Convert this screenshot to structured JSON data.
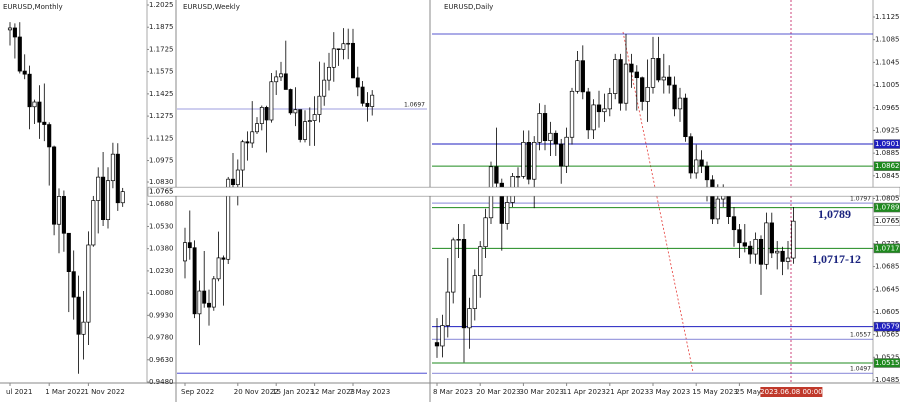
{
  "chart_data": [
    {
      "type": "candlestick",
      "title": "EURUSD,Monthly",
      "categories": [
        "ul 2021",
        null,
        null,
        null,
        null,
        null,
        null,
        null,
        "1 Mar 2022",
        null,
        null,
        null,
        null,
        null,
        null,
        null,
        "1 Nov 2022",
        null,
        null,
        null,
        null,
        null,
        null,
        null
      ],
      "values": [
        [
          1.1857,
          1.1909,
          1.1752,
          1.187
        ],
        [
          1.187,
          1.1901,
          1.1664,
          1.1809
        ],
        [
          1.1809,
          1.1909,
          1.1563,
          1.1579
        ],
        [
          1.1579,
          1.1692,
          1.1524,
          1.1558
        ],
        [
          1.1558,
          1.1616,
          1.1186,
          1.1338
        ],
        [
          1.1338,
          1.1386,
          1.1222,
          1.137
        ],
        [
          1.137,
          1.1483,
          1.1121,
          1.1234
        ],
        [
          1.1234,
          1.1495,
          1.1106,
          1.1218
        ],
        [
          1.1218,
          1.1233,
          1.0806,
          1.1067
        ],
        [
          1.1067,
          1.1076,
          1.0471,
          1.0545
        ],
        [
          1.0545,
          1.0787,
          1.0349,
          1.0733
        ],
        [
          1.0733,
          1.0773,
          1.0359,
          1.0484
        ],
        [
          1.0484,
          1.0486,
          0.9952,
          1.0225
        ],
        [
          1.0225,
          1.0368,
          0.9901,
          1.0053
        ],
        [
          1.0053,
          1.0198,
          0.9536,
          0.9802
        ],
        [
          0.9802,
          1.0094,
          0.9632,
          0.9884
        ],
        [
          0.9884,
          1.0497,
          0.973,
          1.0405
        ],
        [
          1.0405,
          1.0736,
          1.0393,
          1.0705
        ],
        [
          1.0705,
          1.0929,
          1.0483,
          1.0863
        ],
        [
          1.0863,
          1.1033,
          1.0533,
          1.0576
        ],
        [
          1.0576,
          1.093,
          1.0516,
          1.0839
        ],
        [
          1.0839,
          1.1095,
          1.0788,
          1.1018
        ],
        [
          1.1018,
          1.1092,
          1.0635,
          1.069
        ],
        [
          1.069,
          1.079,
          1.0662,
          1.0765
        ]
      ],
      "up_color": "#ffffff",
      "down_color": "#000000",
      "edge_color": "#000000",
      "ylim": [
        0.948,
        1.2025
      ],
      "yticks": [
        1.2025,
        1.1875,
        1.1725,
        1.1575,
        1.1425,
        1.1275,
        1.1125,
        1.0975,
        {
          "value": 1.083,
          "label": "1.0830"
        },
        {
          "value": 1.068,
          "label": "1.0680"
        },
        {
          "value": 1.053,
          "label": "1.0530"
        },
        {
          "value": 1.038,
          "label": "1.0380"
        },
        {
          "value": 1.023,
          "label": "1.0230"
        },
        {
          "value": 1.008,
          "label": "1.0080"
        },
        {
          "value": 0.993,
          "label": "0.9930"
        },
        {
          "value": 0.978,
          "label": "0.9780"
        },
        {
          "value": 0.963,
          "label": "0.9630"
        },
        {
          "value": 0.948,
          "label": "0.9480"
        }
      ],
      "levels": [
        {
          "value": 1.0765,
          "color": "#ffffff",
          "line": false
        }
      ]
    },
    {
      "type": "candlestick",
      "title": "EURUSD,Weekly",
      "categories": [
        "Sep 2022",
        null,
        null,
        null,
        null,
        null,
        null,
        null,
        null,
        null,
        null,
        "20 Nov 2022",
        null,
        null,
        null,
        null,
        null,
        null,
        null,
        "15 Jan 2023",
        null,
        null,
        null,
        null,
        null,
        null,
        null,
        "12 Mar 2023",
        null,
        null,
        null,
        null,
        null,
        null,
        null,
        "7 May 2023",
        null,
        null,
        null,
        null
      ],
      "values": [
        [
          0.995,
          1.0113,
          0.9864,
          1.004
        ],
        [
          1.004,
          1.0198,
          0.9956,
          1.0015
        ],
        [
          1.0015,
          1.0051,
          0.9669,
          0.969
        ],
        [
          0.969,
          0.9854,
          0.9536,
          0.9802
        ],
        [
          0.9802,
          0.9999,
          0.972,
          0.9742
        ],
        [
          0.9742,
          0.9809,
          0.9632,
          0.9723
        ],
        [
          0.9723,
          0.9876,
          0.9705,
          0.9862
        ],
        [
          0.9862,
          1.0094,
          0.985,
          0.9965
        ],
        [
          0.9965,
          0.9977,
          0.973,
          0.9958
        ],
        [
          0.9958,
          1.0363,
          0.9935,
          1.0352
        ],
        [
          1.0352,
          1.0481,
          1.0271,
          1.0325
        ],
        [
          1.0325,
          1.0449,
          1.0223,
          1.0397
        ],
        [
          1.0397,
          1.0545,
          1.029,
          1.0536
        ],
        [
          1.0536,
          1.0587,
          1.0443,
          1.053
        ],
        [
          1.053,
          1.0736,
          1.0506,
          1.0585
        ],
        [
          1.0585,
          1.0657,
          1.0574,
          1.0625
        ],
        [
          1.0625,
          1.0714,
          1.0592,
          1.0705
        ],
        [
          1.0705,
          1.0713,
          1.0483,
          1.0643
        ],
        [
          1.0643,
          1.0874,
          1.063,
          1.0831
        ],
        [
          1.0831,
          1.0887,
          1.0766,
          1.0855
        ],
        [
          1.0855,
          1.0929,
          1.0835,
          1.087
        ],
        [
          1.087,
          1.1033,
          1.0793,
          1.0793
        ],
        [
          1.0793,
          1.0797,
          1.0669,
          1.0678
        ],
        [
          1.0678,
          1.0804,
          1.0613,
          1.0694
        ],
        [
          1.0694,
          1.0694,
          1.0533,
          1.0547
        ],
        [
          1.0547,
          1.0691,
          1.0533,
          1.0635
        ],
        [
          1.0635,
          1.0705,
          1.0516,
          1.064
        ],
        [
          1.064,
          1.076,
          1.0516,
          1.067
        ],
        [
          1.067,
          1.093,
          1.0631,
          1.076
        ],
        [
          1.076,
          1.0925,
          1.0713,
          1.0839
        ],
        [
          1.0839,
          1.0973,
          1.0788,
          1.0902
        ],
        [
          1.0902,
          1.1075,
          1.0831,
          1.0993
        ],
        [
          1.0993,
          1.0994,
          1.0909,
          1.099
        ],
        [
          1.099,
          1.1095,
          1.0941,
          1.1018
        ],
        [
          1.1018,
          1.1092,
          1.0942,
          1.102
        ],
        [
          1.102,
          1.1091,
          1.0848,
          1.085
        ],
        [
          1.085,
          1.0905,
          1.076,
          1.0805
        ],
        [
          1.0805,
          1.0835,
          1.071,
          1.0725
        ],
        [
          1.0725,
          1.078,
          1.0635,
          1.0709
        ],
        [
          1.0709,
          1.079,
          1.0665,
          1.0765
        ]
      ],
      "up_color": "#ffffff",
      "down_color": "#000000",
      "edge_color": "#000000",
      "ylim": [
        0.934,
        1.1233
      ],
      "marked_lines": [
        {
          "value": 1.0697,
          "color": "#3f3fbf"
        }
      ],
      "lines": [
        {
          "value": 0.9398,
          "color": "#3333cc"
        }
      ]
    },
    {
      "type": "candlestick",
      "title": "EURUSD,Daily",
      "categories": [
        "8 Mar 2023",
        null,
        null,
        null,
        null,
        null,
        null,
        null,
        "20 Mar 2023",
        null,
        null,
        null,
        null,
        null,
        null,
        null,
        "30 Mar 2023",
        null,
        null,
        null,
        null,
        null,
        null,
        null,
        "11 Apr 2023",
        null,
        null,
        null,
        null,
        null,
        null,
        null,
        "21 Apr 2023",
        null,
        null,
        null,
        null,
        null,
        null,
        null,
        "3 May 2023",
        null,
        null,
        null,
        null,
        null,
        null,
        null,
        "15 May 2023",
        null,
        null,
        null,
        null,
        null,
        null,
        null,
        "25 May 2",
        null,
        null,
        null,
        null,
        null,
        null,
        null,
        null,
        null,
        "2023.06.08 00:00"
      ],
      "values": [
        [
          1.0551,
          1.0594,
          1.0524,
          1.0545
        ],
        [
          1.0545,
          1.06,
          1.0525,
          1.0581
        ],
        [
          1.0581,
          1.07,
          1.056,
          1.064
        ],
        [
          1.064,
          1.0736,
          1.062,
          1.0732
        ],
        [
          1.0732,
          1.076,
          1.07,
          1.0733
        ],
        [
          1.0733,
          1.076,
          1.0516,
          1.0577
        ],
        [
          1.0577,
          1.063,
          1.054,
          1.0611
        ],
        [
          1.0611,
          1.068,
          1.059,
          1.0669
        ],
        [
          1.0669,
          1.073,
          1.063,
          1.072
        ],
        [
          1.072,
          1.0787,
          1.07,
          1.0771
        ],
        [
          1.0771,
          1.087,
          1.076,
          1.0861
        ],
        [
          1.0861,
          1.093,
          1.082,
          1.0832
        ],
        [
          1.0832,
          1.084,
          1.0713,
          1.0761
        ],
        [
          1.0761,
          1.081,
          1.075,
          1.0798
        ],
        [
          1.0798,
          1.085,
          1.079,
          1.0844
        ],
        [
          1.0844,
          1.086,
          1.081,
          1.0844
        ],
        [
          1.0844,
          1.0925,
          1.084,
          1.0904
        ],
        [
          1.0904,
          1.0925,
          1.083,
          1.0839
        ],
        [
          1.0839,
          1.0915,
          1.0788,
          1.0904
        ],
        [
          1.0904,
          1.0973,
          1.089,
          1.0955
        ],
        [
          1.0955,
          1.097,
          1.089,
          1.0907
        ],
        [
          1.0907,
          1.094,
          1.088,
          1.092
        ],
        [
          1.092,
          1.0925,
          1.088,
          1.0901
        ],
        [
          1.0901,
          1.091,
          1.0831,
          1.0862
        ],
        [
          1.0862,
          1.093,
          1.085,
          1.0913
        ],
        [
          1.0913,
          1.1,
          1.09,
          1.0994
        ],
        [
          1.0994,
          1.1065,
          1.099,
          1.1048
        ],
        [
          1.1048,
          1.1075,
          1.098,
          1.0993
        ],
        [
          1.0993,
          1.1,
          1.091,
          1.0926
        ],
        [
          1.0926,
          1.098,
          1.091,
          1.097
        ],
        [
          1.097,
          1.0995,
          1.093,
          1.0958
        ],
        [
          1.0958,
          1.099,
          1.094,
          1.0963
        ],
        [
          1.0963,
          1.1,
          1.095,
          1.099
        ],
        [
          1.099,
          1.106,
          1.098,
          1.105
        ],
        [
          1.105,
          1.106,
          1.096,
          1.0973
        ],
        [
          1.0973,
          1.1095,
          1.096,
          1.1042
        ],
        [
          1.1042,
          1.106,
          1.1,
          1.1028
        ],
        [
          1.1028,
          1.104,
          1.096,
          1.1018
        ],
        [
          1.1018,
          1.102,
          1.096,
          1.0976
        ],
        [
          1.0976,
          1.105,
          1.094,
          1.1001
        ],
        [
          1.1001,
          1.109,
          1.099,
          1.1052
        ],
        [
          1.1052,
          1.109,
          1.101,
          1.1014
        ],
        [
          1.1014,
          1.106,
          1.099,
          1.1019
        ],
        [
          1.1019,
          1.104,
          1.099,
          1.1005
        ],
        [
          1.1005,
          1.102,
          1.095,
          1.0963
        ],
        [
          1.0963,
          1.1,
          1.094,
          1.0982
        ],
        [
          1.0982,
          1.099,
          1.0905,
          1.0914
        ],
        [
          1.0914,
          1.092,
          1.084,
          1.085
        ],
        [
          1.085,
          1.09,
          1.084,
          1.0873
        ],
        [
          1.0873,
          1.089,
          1.085,
          1.0862
        ],
        [
          1.0862,
          1.087,
          1.08,
          1.0838
        ],
        [
          1.0838,
          1.0846,
          1.076,
          1.0769
        ],
        [
          1.0769,
          1.083,
          1.076,
          1.0804
        ],
        [
          1.0804,
          1.083,
          1.079,
          1.0814
        ],
        [
          1.0814,
          1.082,
          1.076,
          1.0773
        ],
        [
          1.0773,
          1.079,
          1.072,
          1.075
        ],
        [
          1.075,
          1.076,
          1.07,
          1.0727
        ],
        [
          1.0727,
          1.076,
          1.071,
          1.0721
        ],
        [
          1.0721,
          1.073,
          1.069,
          1.0707
        ],
        [
          1.0707,
          1.0745,
          1.069,
          1.0733
        ],
        [
          1.0733,
          1.074,
          1.0635,
          1.0689
        ],
        [
          1.0689,
          1.078,
          1.068,
          1.0762
        ],
        [
          1.0762,
          1.078,
          1.07,
          1.0709
        ],
        [
          1.0709,
          1.073,
          1.068,
          1.0712
        ],
        [
          1.0712,
          1.072,
          1.067,
          1.0694
        ],
        [
          1.0694,
          1.073,
          1.068,
          1.07
        ],
        [
          1.07,
          1.079,
          1.069,
          1.0765
        ]
      ],
      "up_color": "#ffffff",
      "down_color": "#000000",
      "edge_color": "#000000",
      "current_label_color": "#c0392b",
      "ylim": [
        1.0485,
        1.1125
      ],
      "yticks": [
        1.1125,
        1.1085,
        1.1045,
        1.1005,
        1.0965,
        1.0925,
        1.0885,
        1.0845,
        1.0805,
        1.0725,
        1.0685,
        1.0645,
        1.0605,
        1.0565,
        1.0525,
        1.0485
      ],
      "levels": [
        {
          "value": 1.0901,
          "color": "#1f1fbf",
          "line": true
        },
        {
          "value": 1.0862,
          "color": "#1e8a1e",
          "line": true
        },
        {
          "value": 1.0789,
          "color": "#1e8a1e",
          "line": true
        },
        {
          "value": 1.0765,
          "color": "#ffffff",
          "line": false
        },
        {
          "value": 1.0717,
          "color": "#1e8a1e",
          "line": true
        },
        {
          "value": 1.0579,
          "color": "#1f1fbf",
          "line": true
        },
        {
          "value": 1.0515,
          "color": "#1e8a1e",
          "line": true
        }
      ],
      "marked_lines": [
        {
          "value": 1.0797,
          "color": "#3f3fbf"
        },
        {
          "value": 1.0557,
          "color": "#3f3fbf"
        },
        {
          "value": 1.0497,
          "color": "#3f3fbf"
        }
      ],
      "lines": [
        {
          "value": 1.1095,
          "color": "#1f1fbf"
        }
      ],
      "annotations": [
        "1,0789",
        "1,0717-12"
      ]
    }
  ]
}
